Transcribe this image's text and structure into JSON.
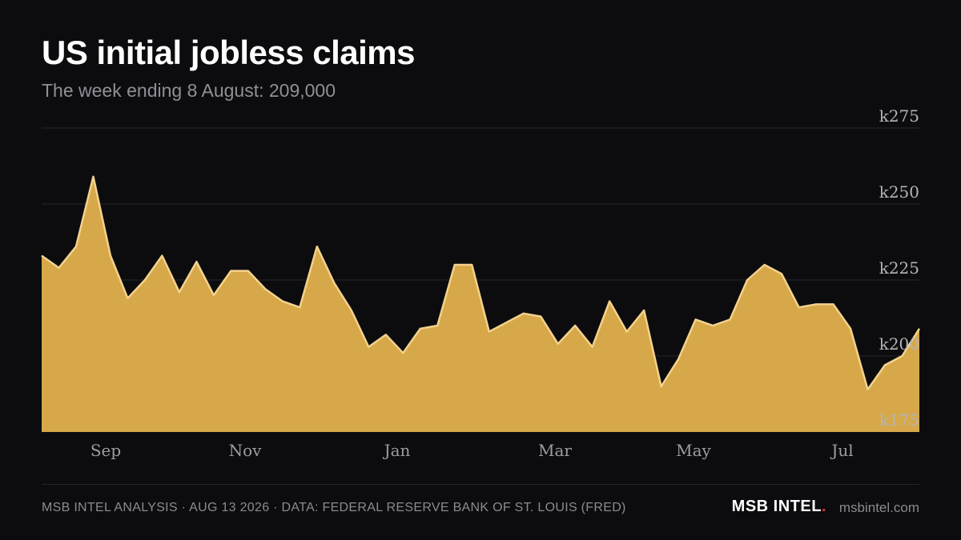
{
  "header": {
    "title": "US initial jobless claims",
    "subtitle": "The week ending 8 August: 209,000"
  },
  "footer": {
    "source": "MSB INTEL ANALYSIS · AUG 13 2026 · DATA: FEDERAL RESERVE BANK OF ST. LOUIS (FRED)",
    "brand": "MSB INTEL",
    "brand_dot": ".",
    "site": "msbintel.com"
  },
  "colors": {
    "background": "#0c0c0f",
    "area_fill": "#d6a84a",
    "area_line": "#f3d28c",
    "grid": "#26262b"
  },
  "chart_data": {
    "type": "area",
    "title": "US initial jobless claims",
    "subtitle": "The week ending 8 August: 209,000",
    "y_unit": "thousands",
    "ylim": [
      175,
      275
    ],
    "y_ticks": [
      175,
      200,
      225,
      250,
      275
    ],
    "y_tick_labels": [
      "k175",
      "k200",
      "k225",
      "k250",
      "k275"
    ],
    "x_ticks": [
      "Sep",
      "Nov",
      "Jan",
      "Mar",
      "May",
      "Jul"
    ],
    "grid": true,
    "legend": "none",
    "series": [
      {
        "values": [
          233,
          229,
          236,
          259,
          233,
          219,
          225,
          233,
          221,
          231,
          220,
          228,
          228,
          222,
          218,
          216,
          236,
          224,
          215,
          203,
          207,
          201,
          209,
          210,
          230,
          230,
          208,
          211,
          214,
          213,
          204,
          210,
          203,
          218,
          208,
          215,
          190,
          199,
          212,
          210,
          212,
          225,
          230,
          227,
          216,
          217,
          217,
          209,
          189,
          197,
          200,
          209
        ]
      }
    ]
  }
}
